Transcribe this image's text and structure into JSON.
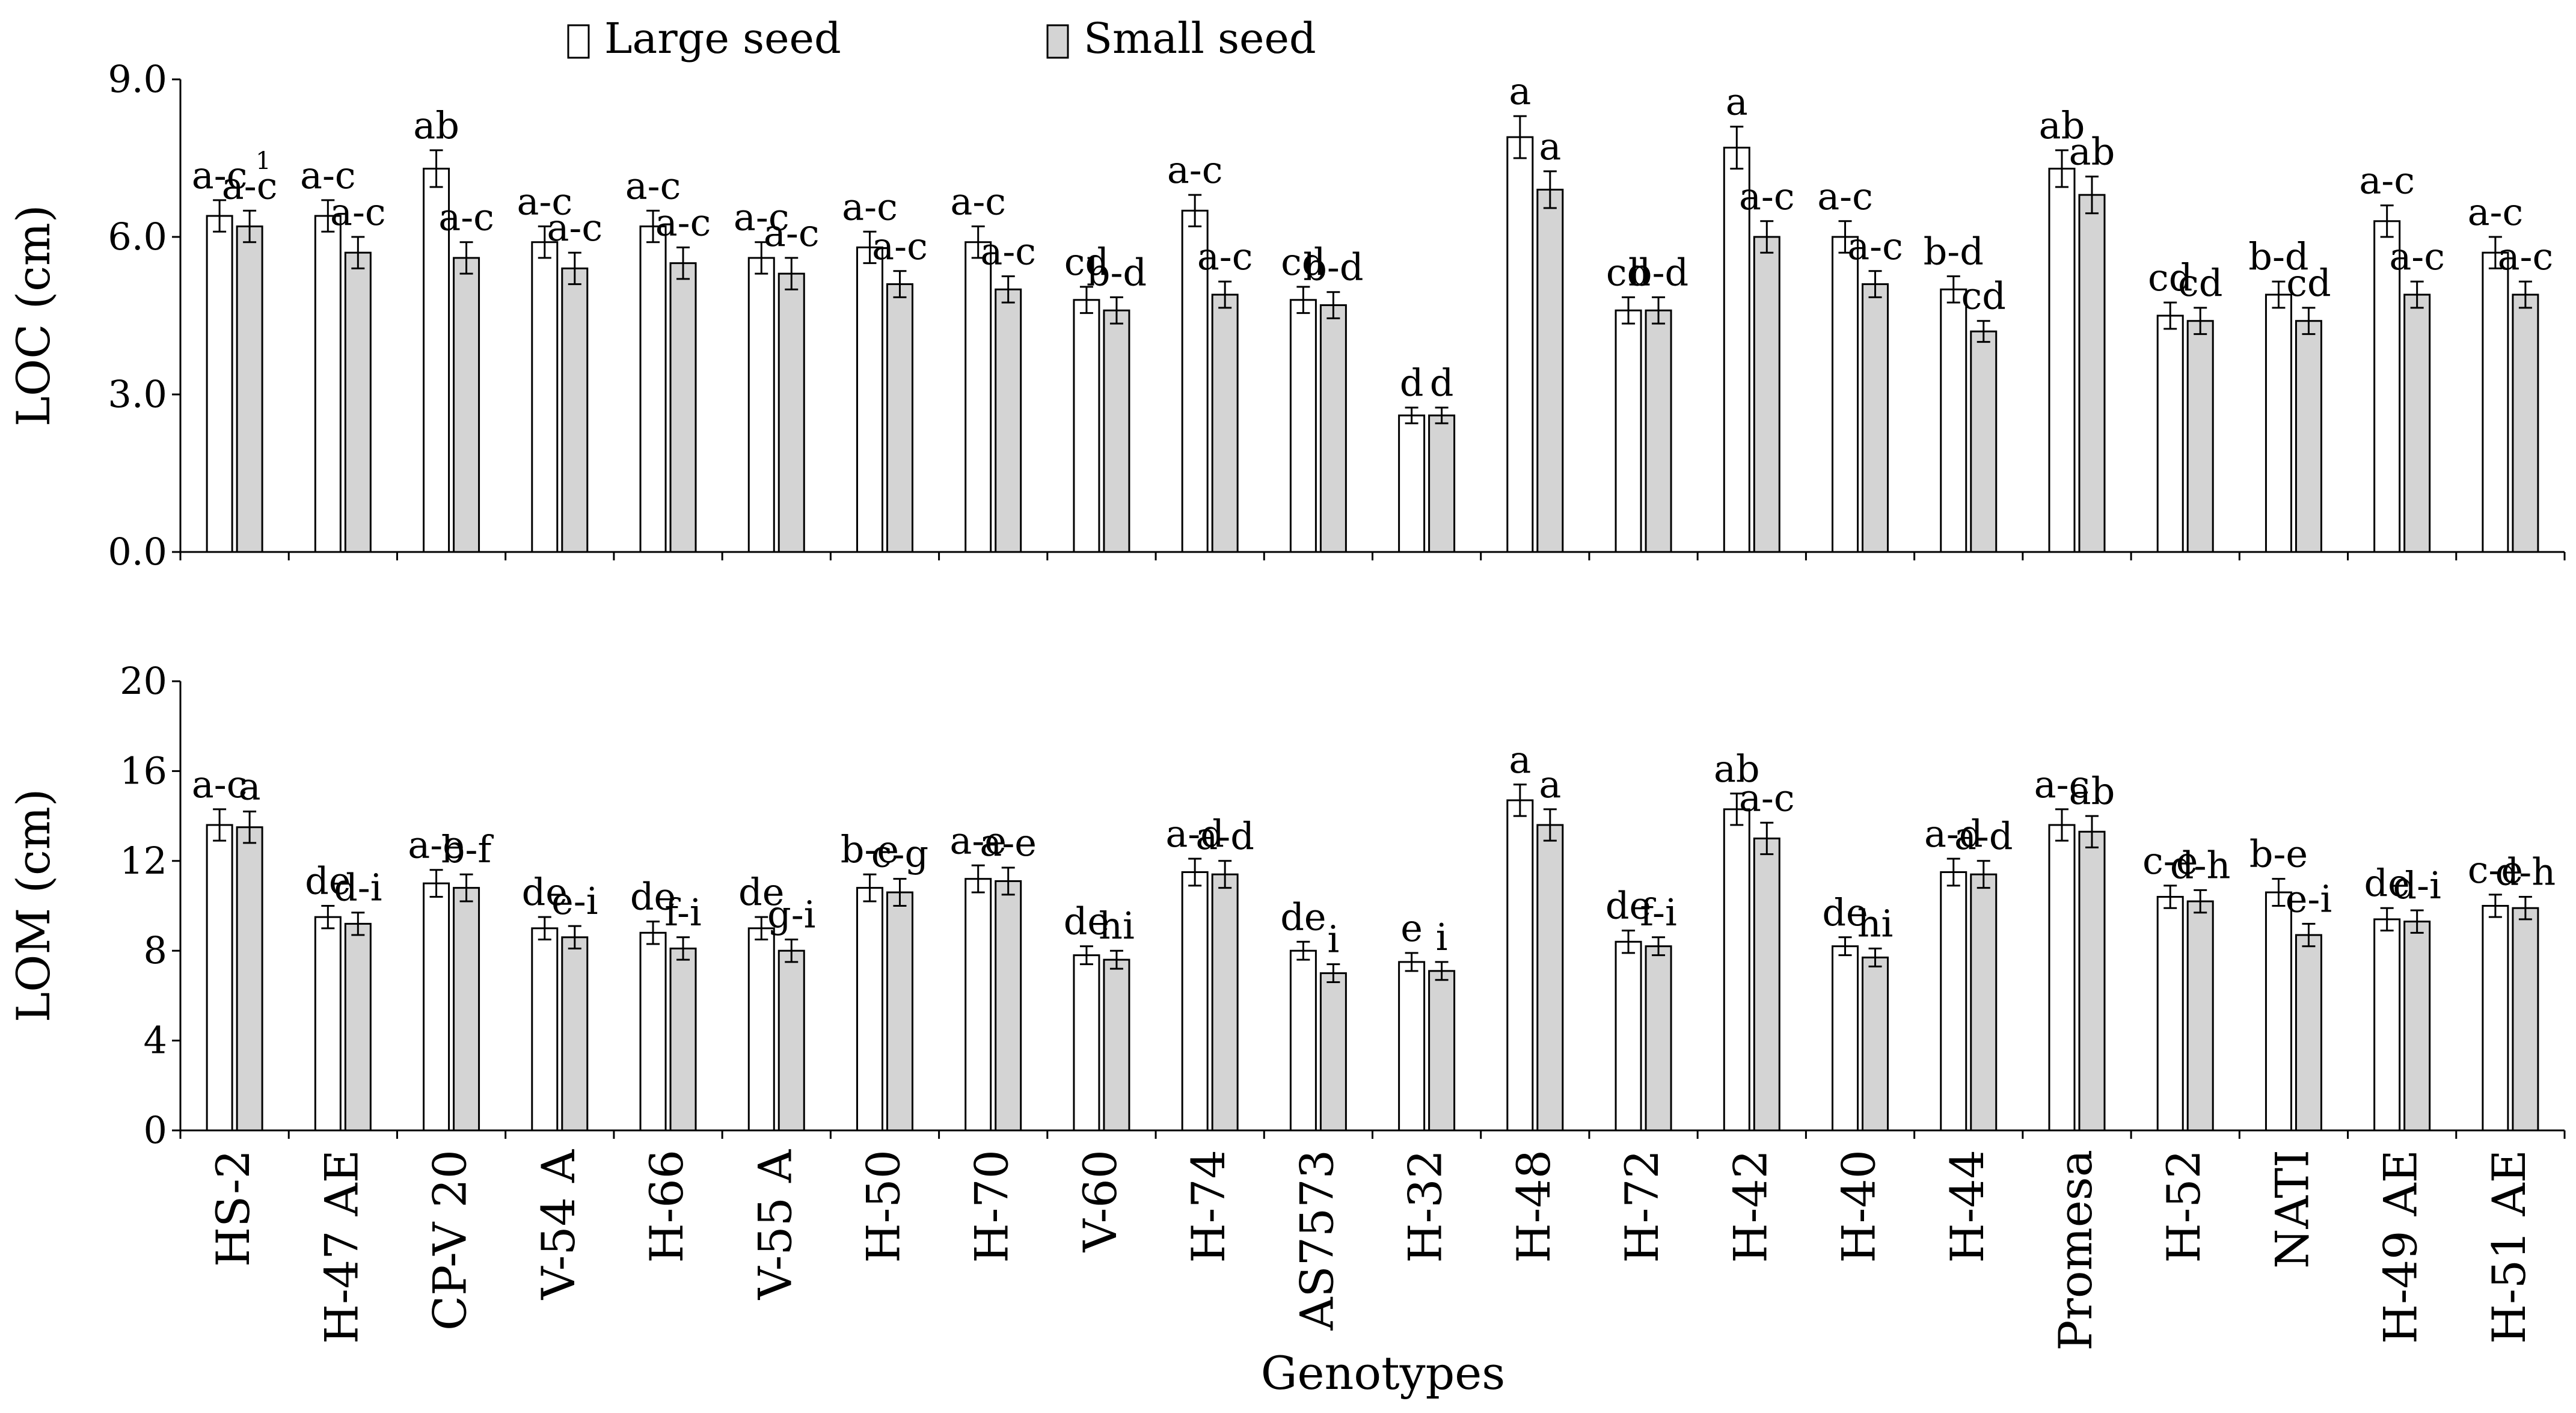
{
  "legend": {
    "large_label": "Large seed",
    "small_label": "Small seed"
  },
  "colors": {
    "large": "#ffffff",
    "small": "#d4d4d4",
    "stroke": "#000000"
  },
  "chart_data": {
    "type": "bar",
    "categories": [
      "HS-2",
      "H-47 AE",
      "CP-V 20",
      "V-54 A",
      "H-66",
      "V-55 A",
      "H-50",
      "H-70",
      "V-60",
      "H-74",
      "AS7573",
      "H-32",
      "H-48",
      "H-72",
      "H-42",
      "H-40",
      "H-44",
      "Promesa",
      "H-52",
      "NATI",
      "H-49 AE",
      "H-51 AE"
    ],
    "xlabel": "Genotypes",
    "footnote_marker": "1",
    "panels": [
      {
        "id": "loc",
        "ylabel": "LOC (cm)",
        "ylim": [
          0,
          9
        ],
        "yticks": [
          0,
          3,
          6,
          9
        ],
        "ytick_labels": [
          "0.0",
          "3.0",
          "6.0",
          "9.0"
        ],
        "series": [
          {
            "name": "Large seed",
            "values": [
              6.4,
              6.4,
              7.3,
              5.9,
              6.2,
              5.6,
              5.8,
              5.9,
              4.8,
              6.5,
              4.8,
              2.6,
              7.9,
              4.6,
              7.7,
              6.0,
              5.0,
              7.3,
              4.5,
              4.9,
              6.3,
              5.7
            ],
            "errors": [
              0.3,
              0.3,
              0.35,
              0.3,
              0.3,
              0.3,
              0.3,
              0.3,
              0.25,
              0.3,
              0.25,
              0.15,
              0.4,
              0.25,
              0.4,
              0.3,
              0.25,
              0.35,
              0.25,
              0.25,
              0.3,
              0.3
            ],
            "letters": [
              "a-c",
              "a-c",
              "ab",
              "a-c",
              "a-c",
              "a-c",
              "a-c",
              "a-c",
              "cd",
              "a-c",
              "cd",
              "d",
              "a",
              "cd",
              "a",
              "a-c",
              "b-d",
              "ab",
              "cd",
              "b-d",
              "a-c",
              "a-c"
            ]
          },
          {
            "name": "Small seed",
            "values": [
              6.2,
              5.7,
              5.6,
              5.4,
              5.5,
              5.3,
              5.1,
              5.0,
              4.6,
              4.9,
              4.7,
              2.6,
              6.9,
              4.6,
              6.0,
              5.1,
              4.2,
              6.8,
              4.4,
              4.4,
              4.9,
              4.9
            ],
            "errors": [
              0.3,
              0.3,
              0.3,
              0.3,
              0.3,
              0.3,
              0.25,
              0.25,
              0.25,
              0.25,
              0.25,
              0.15,
              0.35,
              0.25,
              0.3,
              0.25,
              0.2,
              0.35,
              0.25,
              0.25,
              0.25,
              0.25
            ],
            "letters": [
              "a-c",
              "a-c",
              "a-c",
              "a-c",
              "a-c",
              "a-c",
              "a-c",
              "a-c",
              "b-d",
              "a-c",
              "b-d",
              "d",
              "a",
              "b-d",
              "a-c",
              "a-c",
              "cd",
              "ab",
              "cd",
              "cd",
              "a-c",
              "a-c"
            ]
          }
        ]
      },
      {
        "id": "lom",
        "ylabel": "LOM (cm)",
        "ylim": [
          0,
          20
        ],
        "yticks": [
          0,
          4,
          8,
          12,
          16,
          20
        ],
        "ytick_labels": [
          "0",
          "4",
          "8",
          "12",
          "16",
          "20"
        ],
        "series": [
          {
            "name": "Large seed",
            "values": [
              13.6,
              9.5,
              11.0,
              9.0,
              8.8,
              9.0,
              10.8,
              11.2,
              7.8,
              11.5,
              8.0,
              7.5,
              14.7,
              8.4,
              14.3,
              8.2,
              11.5,
              13.6,
              10.4,
              10.6,
              9.4,
              10.0
            ],
            "errors": [
              0.7,
              0.5,
              0.6,
              0.5,
              0.5,
              0.5,
              0.6,
              0.6,
              0.4,
              0.6,
              0.4,
              0.4,
              0.7,
              0.5,
              0.7,
              0.4,
              0.6,
              0.7,
              0.5,
              0.6,
              0.5,
              0.5
            ],
            "letters": [
              "a-c",
              "de",
              "a-e",
              "de",
              "de",
              "de",
              "b-e",
              "a-e",
              "de",
              "a-d",
              "de",
              "e",
              "a",
              "de",
              "ab",
              "de",
              "a-d",
              "a-c",
              "c-e",
              "b-e",
              "de",
              "c-e"
            ]
          },
          {
            "name": "Small seed",
            "values": [
              13.5,
              9.2,
              10.8,
              8.6,
              8.1,
              8.0,
              10.6,
              11.1,
              7.6,
              11.4,
              7.0,
              7.1,
              13.6,
              8.2,
              13.0,
              7.7,
              11.4,
              13.3,
              10.2,
              8.7,
              9.3,
              9.9
            ],
            "errors": [
              0.7,
              0.5,
              0.6,
              0.5,
              0.5,
              0.5,
              0.6,
              0.6,
              0.4,
              0.6,
              0.4,
              0.4,
              0.7,
              0.4,
              0.7,
              0.4,
              0.6,
              0.7,
              0.5,
              0.5,
              0.5,
              0.5
            ],
            "letters": [
              "a",
              "d-i",
              "b-f",
              "e-i",
              "f-i",
              "g-i",
              "c-g",
              "a-e",
              "hi",
              "a-d",
              "i",
              "i",
              "a",
              "f-i",
              "a-c",
              "hi",
              "a-d",
              "ab",
              "d-h",
              "e-i",
              "d-i",
              "d-h"
            ]
          }
        ]
      }
    ]
  }
}
